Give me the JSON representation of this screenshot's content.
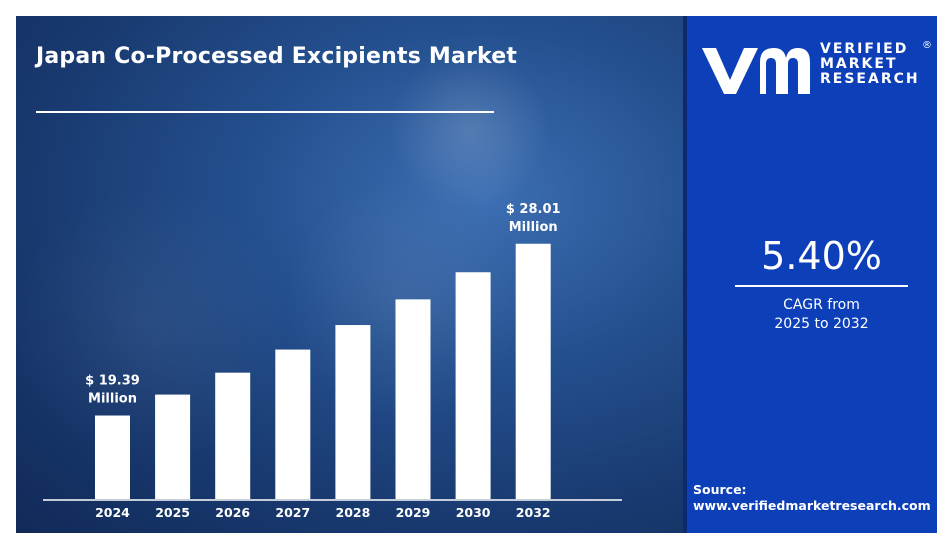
{
  "header": {
    "title": "Japan Co-Processed Excipients Market"
  },
  "brand": {
    "line1": "VERIFIED",
    "line2": "MARKET",
    "line3": "RESEARCH",
    "registered_mark": "®",
    "logo_icon": "vmr-logo-icon",
    "color": "#0d3fb8"
  },
  "stats": {
    "cagr_value": "5.40%",
    "cagr_label_line1": "CAGR from",
    "cagr_label_line2": "2025 to 2032"
  },
  "source": {
    "label": "Source:",
    "url": "www.verifiedmarketresearch.com"
  },
  "chart_data": {
    "type": "bar",
    "categories": [
      "2024",
      "2025",
      "2026",
      "2027",
      "2028",
      "2029",
      "2030",
      "2032"
    ],
    "values": [
      19.39,
      20.44,
      21.54,
      22.7,
      23.93,
      25.22,
      26.58,
      28.01
    ],
    "value_labels": [
      {
        "index": 0,
        "line1": "$ 19.39",
        "line2": "Million"
      },
      {
        "index": 7,
        "line1": "$ 28.01",
        "line2": "Million"
      }
    ],
    "ylim": [
      15.2,
      28.6
    ],
    "bar_color": "#ffffff",
    "grid": false
  }
}
